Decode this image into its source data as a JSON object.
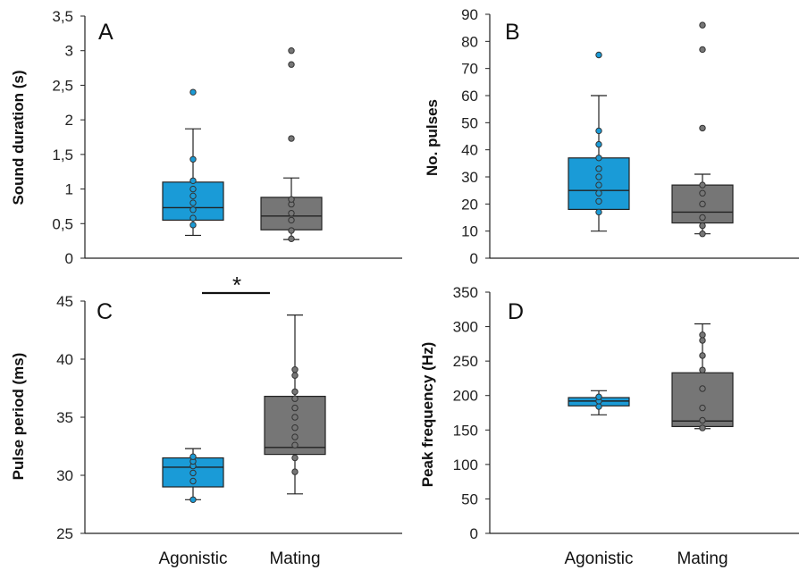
{
  "colors": {
    "agonistic": "#1a9bd7",
    "mating": "#767676"
  },
  "categories": [
    "Agonistic",
    "Mating"
  ],
  "chart_data": [
    {
      "type": "box",
      "panel": "A",
      "ylabel": "Sound duration (s)",
      "ylim": [
        0,
        3.5
      ],
      "yticks": [
        "0",
        "0,5",
        "1",
        "1,5",
        "2",
        "2,5",
        "3",
        "3,5"
      ],
      "categories": [
        "Agonistic",
        "Mating"
      ],
      "boxes": [
        {
          "name": "Agonistic",
          "whisker_low": 0.33,
          "q1": 0.55,
          "median": 0.73,
          "q3": 1.1,
          "whisker_high": 1.87,
          "points": [
            0.48,
            0.58,
            0.7,
            0.8,
            0.9,
            1.0,
            1.12,
            1.43,
            2.4
          ]
        },
        {
          "name": "Mating",
          "whisker_low": 0.27,
          "q1": 0.41,
          "median": 0.61,
          "q3": 0.88,
          "whisker_high": 1.16,
          "points": [
            0.28,
            0.4,
            0.55,
            0.65,
            0.78,
            0.85,
            1.73,
            2.8,
            3.0
          ]
        }
      ]
    },
    {
      "type": "box",
      "panel": "B",
      "ylabel": "No. pulses",
      "ylim": [
        0,
        90
      ],
      "yticks": [
        "0",
        "10",
        "20",
        "30",
        "40",
        "50",
        "60",
        "70",
        "80",
        "90"
      ],
      "categories": [
        "Agonistic",
        "Mating"
      ],
      "boxes": [
        {
          "name": "Agonistic",
          "whisker_low": 10,
          "q1": 18,
          "median": 25,
          "q3": 37,
          "whisker_high": 60,
          "points": [
            17,
            21,
            24,
            27,
            30,
            33,
            37,
            42,
            47,
            75
          ]
        },
        {
          "name": "Mating",
          "whisker_low": 9,
          "q1": 13,
          "median": 17,
          "q3": 27,
          "whisker_high": 31,
          "points": [
            9,
            12,
            15,
            20,
            24,
            27,
            48,
            77,
            86
          ]
        }
      ]
    },
    {
      "type": "box",
      "panel": "C",
      "ylabel": "Pulse period (ms)",
      "ylim": [
        25,
        45
      ],
      "yticks": [
        "25",
        "30",
        "35",
        "40",
        "45"
      ],
      "categories": [
        "Agonistic",
        "Mating"
      ],
      "significance": "*",
      "boxes": [
        {
          "name": "Agonistic",
          "whisker_low": 27.9,
          "q1": 29,
          "median": 30.7,
          "q3": 31.5,
          "whisker_high": 32.3,
          "points": [
            27.9,
            29.5,
            30.2,
            30.8,
            31.2,
            31.6
          ]
        },
        {
          "name": "Mating",
          "whisker_low": 28.4,
          "q1": 31.8,
          "median": 32.4,
          "q3": 36.8,
          "whisker_high": 43.8,
          "points": [
            30.3,
            31.5,
            32.6,
            33.3,
            34.1,
            35.0,
            35.8,
            36.6,
            37.2,
            38.6,
            39.1
          ]
        }
      ]
    },
    {
      "type": "box",
      "panel": "D",
      "ylabel": "Peak frequency (Hz)",
      "ylim": [
        0,
        350
      ],
      "yticks": [
        "0",
        "50",
        "100",
        "150",
        "200",
        "250",
        "300",
        "350"
      ],
      "categories": [
        "Agonistic",
        "Mating"
      ],
      "boxes": [
        {
          "name": "Agonistic",
          "whisker_low": 172,
          "q1": 185,
          "median": 192,
          "q3": 197,
          "whisker_high": 207,
          "points": [
            184,
            192,
            198
          ]
        },
        {
          "name": "Mating",
          "whisker_low": 152,
          "q1": 155,
          "median": 163,
          "q3": 233,
          "whisker_high": 304,
          "points": [
            153,
            164,
            182,
            210,
            237,
            258,
            280,
            288
          ]
        }
      ]
    }
  ],
  "panels_text": {
    "A": {
      "letter": "A",
      "ylabel": "Sound duration (s)"
    },
    "B": {
      "letter": "B",
      "ylabel": "No. pulses"
    },
    "C": {
      "letter": "C",
      "ylabel": "Pulse period (ms)",
      "significance": "*"
    },
    "D": {
      "letter": "D",
      "ylabel": "Peak frequency (Hz)"
    }
  },
  "xaxis": {
    "left": [
      "Agonistic",
      "Mating"
    ],
    "right": [
      "Agonistic",
      "Mating"
    ]
  }
}
